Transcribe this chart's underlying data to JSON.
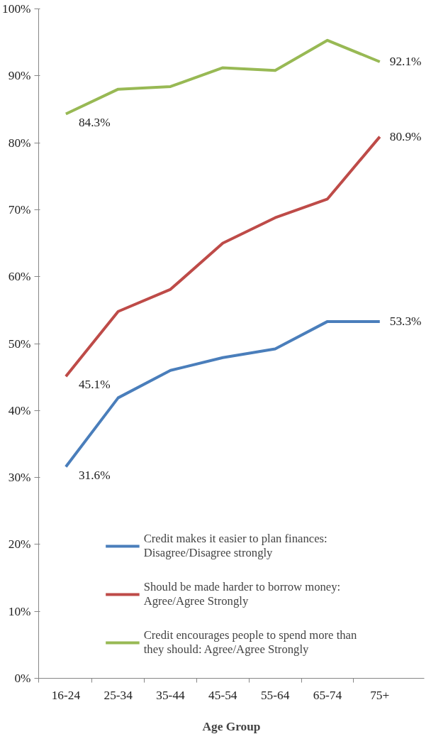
{
  "chart_data": {
    "type": "line",
    "xlabel": "Age Group",
    "categories": [
      "16-24",
      "25-34",
      "35-44",
      "45-54",
      "55-64",
      "65-74",
      "75+"
    ],
    "series": [
      {
        "name": "Credit makes it easier to plan finances: Disagree/Disagree strongly",
        "color": "#4a7ebb",
        "values": [
          31.6,
          41.9,
          46.0,
          47.9,
          49.2,
          53.3,
          53.3
        ],
        "value_labels": [
          "31.6%",
          null,
          null,
          null,
          null,
          null,
          "53.3%"
        ]
      },
      {
        "name": "Should be made harder to borrow money: Agree/Agree Strongly",
        "color": "#be4b48",
        "values": [
          45.1,
          54.8,
          58.1,
          65.0,
          68.8,
          71.6,
          80.9
        ],
        "value_labels": [
          "45.1%",
          null,
          null,
          null,
          null,
          null,
          "80.9%"
        ]
      },
      {
        "name": "Credit encourages people to spend more than they should: Agree/Agree Strongly",
        "color": "#98b954",
        "values": [
          84.3,
          88.0,
          88.4,
          91.2,
          90.8,
          95.3,
          92.1
        ],
        "value_labels": [
          "84.3%",
          null,
          null,
          null,
          null,
          null,
          "92.1%"
        ]
      }
    ],
    "ylim": [
      0,
      100
    ],
    "yticks": [
      {
        "value": 0,
        "label": "0%"
      },
      {
        "value": 10,
        "label": "10%"
      },
      {
        "value": 20,
        "label": "20%"
      },
      {
        "value": 30,
        "label": "30%"
      },
      {
        "value": 40,
        "label": "40%"
      },
      {
        "value": 50,
        "label": "50%"
      },
      {
        "value": 60,
        "label": "60%"
      },
      {
        "value": 70,
        "label": "70%"
      },
      {
        "value": 80,
        "label": "80%"
      },
      {
        "value": 90,
        "label": "90%"
      },
      {
        "value": 100,
        "label": "100%"
      }
    ],
    "grid": false,
    "legend": "bottom",
    "marker": "none",
    "line_style": "solid"
  }
}
